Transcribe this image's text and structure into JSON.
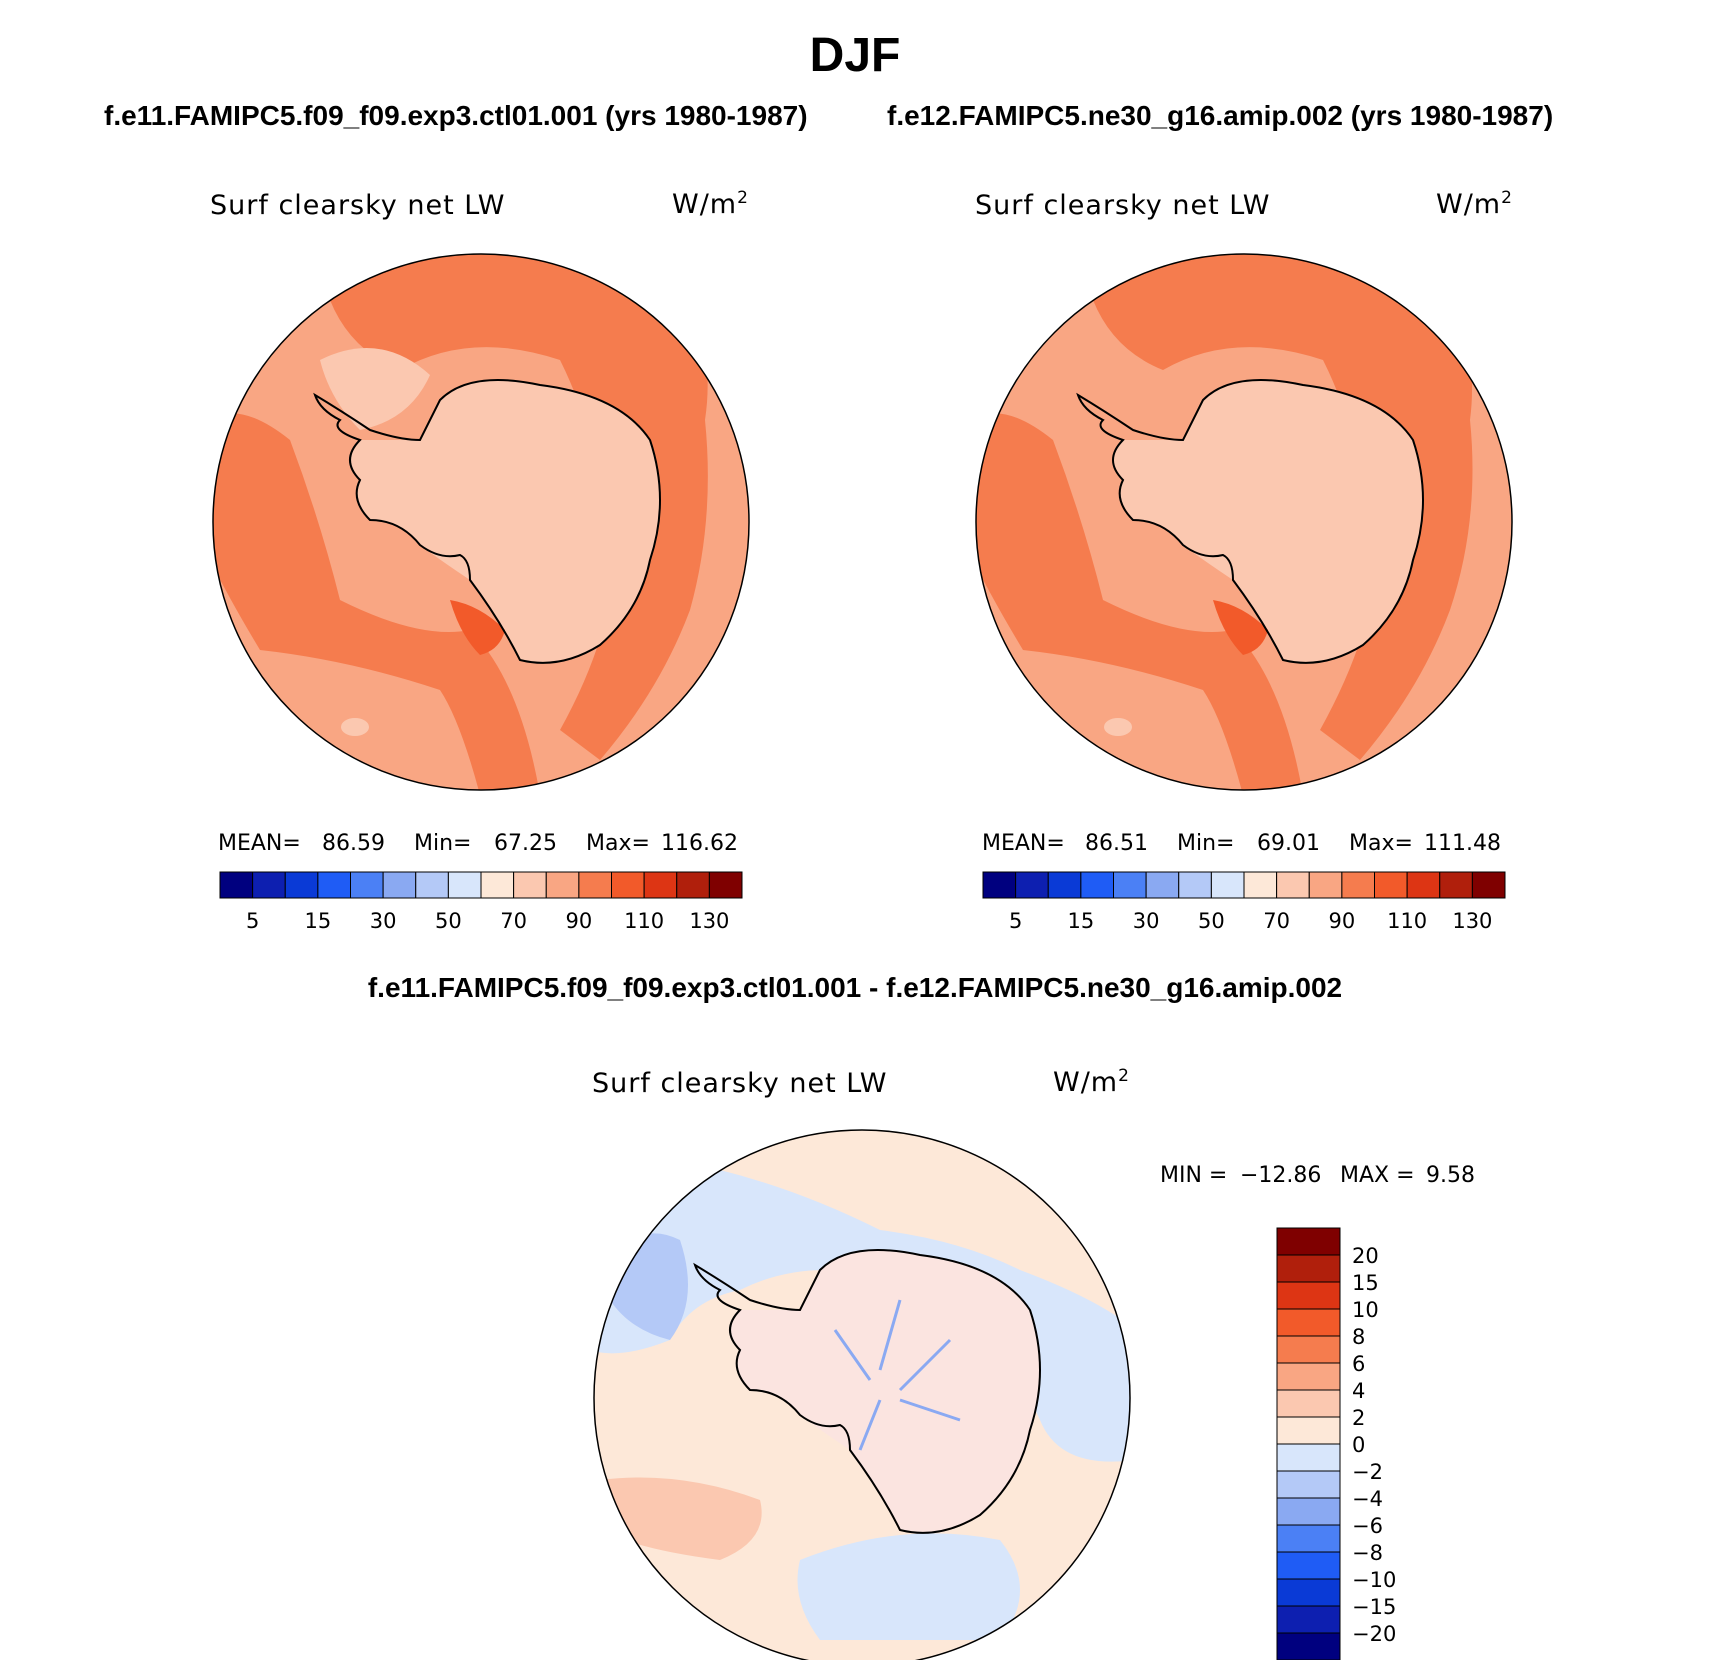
{
  "title": "DJF",
  "case1_title": "f.e11.FAMIPC5.f09_f09.exp3.ctl01.001 (yrs 1980-1987)",
  "case2_title": "f.e12.FAMIPC5.ne30_g16.amip.002 (yrs 1980-1987)",
  "diff_title": "f.e11.FAMIPC5.f09_f09.exp3.ctl01.001 - f.e12.FAMIPC5.ne30_g16.amip.002",
  "variable": "Surf clearsky net LW",
  "units_base": "W/m",
  "units_exp": "2",
  "chart_data": [
    {
      "type": "heatmap",
      "projection": "south-polar-stereographic",
      "panel": "case1",
      "stats": {
        "mean_label": "MEAN=",
        "mean": "86.59",
        "min_label": "Min=",
        "min": "67.25",
        "max_label": "Max=",
        "max": "116.62"
      },
      "levels": [
        5,
        10,
        15,
        20,
        30,
        40,
        50,
        60,
        70,
        80,
        90,
        100,
        110,
        120,
        130
      ],
      "tick_labels": [
        "5",
        "15",
        "30",
        "50",
        "70",
        "90",
        "110",
        "130"
      ],
      "colors": [
        "#00007f",
        "#0d1fb0",
        "#0a3ad6",
        "#1f5cf5",
        "#4b80f5",
        "#8aa9f2",
        "#b4c9f7",
        "#d8e6fb",
        "#fde8d8",
        "#fbc8b0",
        "#f9a683",
        "#f57c4e",
        "#f25a2a",
        "#dd3514",
        "#b01f0c",
        "#7f0000"
      ]
    },
    {
      "type": "heatmap",
      "projection": "south-polar-stereographic",
      "panel": "case2",
      "stats": {
        "mean_label": "MEAN=",
        "mean": "86.51",
        "min_label": "Min=",
        "min": "69.01",
        "max_label": "Max=",
        "max": "111.48"
      },
      "levels": [
        5,
        10,
        15,
        20,
        30,
        40,
        50,
        60,
        70,
        80,
        90,
        100,
        110,
        120,
        130
      ],
      "tick_labels": [
        "5",
        "15",
        "30",
        "50",
        "70",
        "90",
        "110",
        "130"
      ],
      "colors": [
        "#00007f",
        "#0d1fb0",
        "#0a3ad6",
        "#1f5cf5",
        "#4b80f5",
        "#8aa9f2",
        "#b4c9f7",
        "#d8e6fb",
        "#fde8d8",
        "#fbc8b0",
        "#f9a683",
        "#f57c4e",
        "#f25a2a",
        "#dd3514",
        "#b01f0c",
        "#7f0000"
      ]
    },
    {
      "type": "heatmap",
      "projection": "south-polar-stereographic",
      "panel": "difference",
      "stats": {
        "min_label": "MIN =",
        "min": "−12.86",
        "max_label": "MAX =",
        "max": "9.58"
      },
      "levels": [
        -20,
        -15,
        -10,
        -8,
        -6,
        -4,
        -2,
        0,
        2,
        4,
        6,
        8,
        10,
        15,
        20
      ],
      "tick_labels": [
        "20",
        "15",
        "10",
        "8",
        "6",
        "4",
        "2",
        "0",
        "−2",
        "−4",
        "−6",
        "−8",
        "−10",
        "−15",
        "−20"
      ],
      "colors": [
        "#7f0000",
        "#b01f0c",
        "#dd3514",
        "#f25a2a",
        "#f57c4e",
        "#f9a683",
        "#fbc8b0",
        "#fde8d8",
        "#d8e6fb",
        "#b4c9f7",
        "#8aa9f2",
        "#4b80f5",
        "#1f5cf5",
        "#0a3ad6",
        "#0d1fb0",
        "#00007f"
      ]
    }
  ]
}
